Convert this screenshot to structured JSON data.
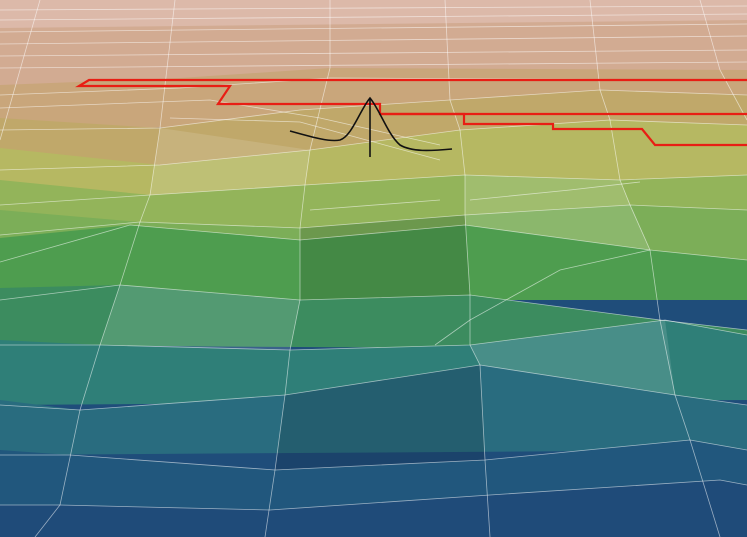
{
  "scene": {
    "type": "3d-terrain-surface",
    "colormap": [
      "#d9b8a6",
      "#cda88a",
      "#c6a36f",
      "#b9b862",
      "#93b45a",
      "#6aa957",
      "#489a4e",
      "#3a8a63",
      "#2f7c78",
      "#2a6b7f",
      "#225a7d",
      "#1f4d7a"
    ],
    "mesh_line_color": "#ffffff",
    "overlays": {
      "boundary_path": {
        "color": "#e81e14"
      },
      "peak_curve": {
        "color": "#111111"
      }
    }
  }
}
